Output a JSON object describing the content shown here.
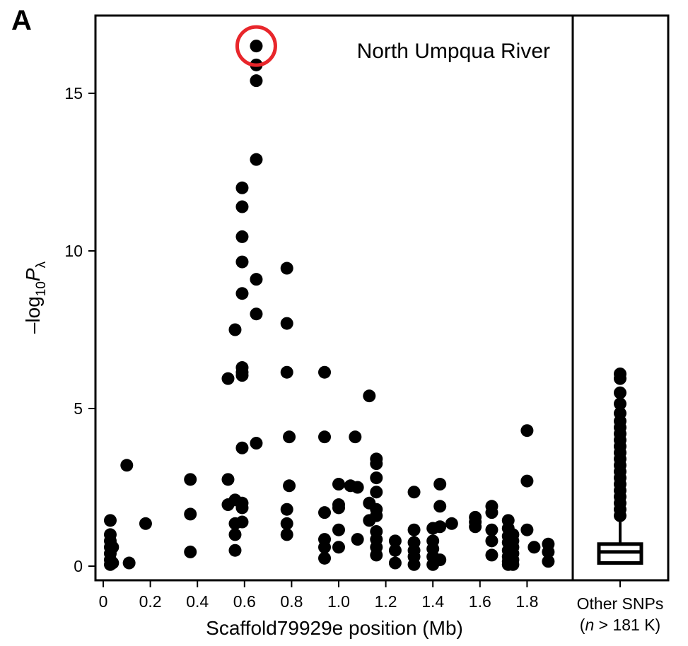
{
  "panel_label": "A",
  "chart_data": {
    "type": "scatter",
    "title": "",
    "annotation": "North Umpqua River",
    "xlabel": "Scaffold79929e position (Mb)",
    "ylabel": {
      "prefix": "–log",
      "sub": "10",
      "var": "P",
      "var_sub": "λ"
    },
    "xlim": [
      0,
      1.93
    ],
    "ylim": [
      -0.3,
      17.3
    ],
    "xticks": [
      0,
      0.2,
      0.4,
      0.6,
      0.8,
      1.0,
      1.2,
      1.4,
      1.6,
      1.8
    ],
    "xtick_labels": [
      "0",
      "0.2",
      "0.4",
      "0.6",
      "0.8",
      "1.0",
      "1.2",
      "1.4",
      "1.6",
      "1.8"
    ],
    "yticks": [
      0,
      5,
      10,
      15
    ],
    "ytick_labels": [
      "0",
      "5",
      "10",
      "15"
    ],
    "grid": false,
    "highlight": {
      "x": 0.65,
      "y": 16.5,
      "color": "#e8262b"
    },
    "points": [
      [
        0.03,
        1.45
      ],
      [
        0.03,
        1.0
      ],
      [
        0.03,
        0.8
      ],
      [
        0.03,
        0.6
      ],
      [
        0.03,
        0.4
      ],
      [
        0.03,
        0.2
      ],
      [
        0.03,
        0.05
      ],
      [
        0.04,
        0.1
      ],
      [
        0.04,
        0.6
      ],
      [
        0.1,
        3.2
      ],
      [
        0.11,
        0.1
      ],
      [
        0.18,
        1.35
      ],
      [
        0.37,
        2.75
      ],
      [
        0.37,
        1.65
      ],
      [
        0.37,
        0.45
      ],
      [
        0.53,
        2.75
      ],
      [
        0.53,
        1.95
      ],
      [
        0.53,
        5.95
      ],
      [
        0.56,
        7.5
      ],
      [
        0.56,
        2.1
      ],
      [
        0.56,
        1.35
      ],
      [
        0.56,
        1.0
      ],
      [
        0.56,
        0.5
      ],
      [
        0.59,
        12.0
      ],
      [
        0.59,
        11.4
      ],
      [
        0.59,
        10.45
      ],
      [
        0.59,
        9.65
      ],
      [
        0.59,
        8.65
      ],
      [
        0.59,
        6.3
      ],
      [
        0.59,
        6.15
      ],
      [
        0.59,
        6.05
      ],
      [
        0.59,
        3.75
      ],
      [
        0.59,
        2.0
      ],
      [
        0.59,
        1.85
      ],
      [
        0.59,
        1.4
      ],
      [
        0.65,
        16.5
      ],
      [
        0.65,
        15.9
      ],
      [
        0.65,
        15.4
      ],
      [
        0.65,
        12.9
      ],
      [
        0.65,
        9.1
      ],
      [
        0.65,
        8.0
      ],
      [
        0.65,
        3.9
      ],
      [
        0.78,
        9.45
      ],
      [
        0.78,
        7.7
      ],
      [
        0.78,
        6.15
      ],
      [
        0.79,
        4.1
      ],
      [
        0.79,
        2.55
      ],
      [
        0.78,
        1.8
      ],
      [
        0.78,
        1.35
      ],
      [
        0.78,
        1.0
      ],
      [
        0.94,
        6.15
      ],
      [
        0.94,
        4.1
      ],
      [
        0.94,
        1.7
      ],
      [
        0.94,
        0.85
      ],
      [
        0.94,
        0.6
      ],
      [
        0.94,
        0.25
      ],
      [
        1.0,
        2.6
      ],
      [
        1.0,
        1.95
      ],
      [
        1.0,
        1.85
      ],
      [
        1.0,
        1.15
      ],
      [
        1.0,
        0.6
      ],
      [
        1.05,
        2.55
      ],
      [
        1.07,
        4.1
      ],
      [
        1.08,
        2.5
      ],
      [
        1.08,
        0.85
      ],
      [
        1.13,
        5.4
      ],
      [
        1.13,
        2.0
      ],
      [
        1.13,
        1.45
      ],
      [
        1.16,
        3.4
      ],
      [
        1.16,
        3.25
      ],
      [
        1.16,
        2.8
      ],
      [
        1.16,
        2.35
      ],
      [
        1.16,
        1.8
      ],
      [
        1.16,
        1.6
      ],
      [
        1.16,
        1.1
      ],
      [
        1.16,
        0.85
      ],
      [
        1.16,
        0.6
      ],
      [
        1.16,
        0.35
      ],
      [
        1.24,
        0.8
      ],
      [
        1.24,
        0.5
      ],
      [
        1.24,
        0.1
      ],
      [
        1.32,
        2.35
      ],
      [
        1.32,
        1.15
      ],
      [
        1.32,
        0.75
      ],
      [
        1.32,
        0.5
      ],
      [
        1.32,
        0.3
      ],
      [
        1.32,
        0.05
      ],
      [
        1.4,
        1.2
      ],
      [
        1.4,
        0.8
      ],
      [
        1.4,
        0.55
      ],
      [
        1.4,
        0.3
      ],
      [
        1.4,
        0.05
      ],
      [
        1.43,
        2.6
      ],
      [
        1.43,
        1.9
      ],
      [
        1.43,
        1.25
      ],
      [
        1.43,
        0.2
      ],
      [
        1.48,
        1.35
      ],
      [
        1.58,
        1.55
      ],
      [
        1.58,
        1.4
      ],
      [
        1.58,
        1.25
      ],
      [
        1.65,
        1.9
      ],
      [
        1.65,
        1.7
      ],
      [
        1.65,
        1.15
      ],
      [
        1.65,
        0.8
      ],
      [
        1.65,
        0.35
      ],
      [
        1.72,
        1.45
      ],
      [
        1.72,
        1.2
      ],
      [
        1.72,
        0.95
      ],
      [
        1.72,
        0.75
      ],
      [
        1.72,
        0.5
      ],
      [
        1.72,
        0.3
      ],
      [
        1.72,
        0.15
      ],
      [
        1.72,
        0.05
      ],
      [
        1.74,
        1.0
      ],
      [
        1.74,
        0.8
      ],
      [
        1.74,
        0.6
      ],
      [
        1.74,
        0.4
      ],
      [
        1.74,
        0.2
      ],
      [
        1.74,
        0.05
      ],
      [
        1.8,
        4.3
      ],
      [
        1.8,
        2.7
      ],
      [
        1.8,
        1.15
      ],
      [
        1.83,
        0.6
      ],
      [
        1.89,
        0.7
      ],
      [
        1.89,
        0.45
      ],
      [
        1.89,
        0.15
      ]
    ],
    "inset": {
      "label_line1": "Other SNPs",
      "label_line2_italic": "n",
      "label_line2_rest": " > 181 K)",
      "label_line2_open": "(",
      "box": {
        "q1": 0.1,
        "median": 0.45,
        "q3": 0.7,
        "whisker_high": 1.4
      },
      "outliers": [
        6.1,
        5.95,
        5.5,
        5.15,
        4.85,
        4.6,
        4.4,
        4.2,
        4.0,
        3.8,
        3.6,
        3.4,
        3.2,
        3.0,
        2.8,
        2.6,
        2.4,
        2.2,
        2.0,
        1.8,
        1.6
      ]
    }
  }
}
